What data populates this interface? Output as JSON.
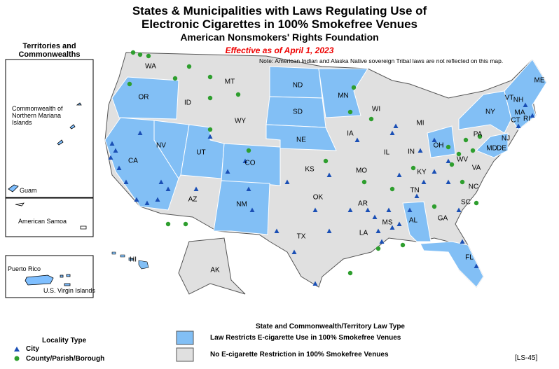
{
  "header": {
    "title_line1": "States & Municipalities with Laws Regulating Use of",
    "title_line2": "Electronic Cigarettes in 100% Smokefree Venues",
    "subtitle": "American Nonsmokers' Rights Foundation",
    "effective": "Effective as of April 1, 2023",
    "note": "Note: American Indian and Alaska Native sovereign Tribal laws are not reflected on this map."
  },
  "territories": {
    "title": "Territories and Commonwealths",
    "labels": [
      "Commonwealth of Northern Mariana Islands",
      "Guam",
      "American Samoa",
      "Puerto Rico",
      "U.S. Virgin Islands"
    ]
  },
  "states": [
    "WA",
    "OR",
    "MT",
    "ID",
    "ND",
    "MN",
    "SD",
    "WY",
    "WI",
    "MI",
    "NE",
    "IA",
    "IL",
    "IN",
    "OH",
    "PA",
    "NY",
    "VT",
    "NH",
    "ME",
    "MA",
    "CT",
    "RI",
    "NJ",
    "DE",
    "MD",
    "WV",
    "VA",
    "NV",
    "UT",
    "CO",
    "CA",
    "KS",
    "MO",
    "KY",
    "TN",
    "NC",
    "SC",
    "OK",
    "AR",
    "AZ",
    "NM",
    "TX",
    "LA",
    "MS",
    "AL",
    "GA",
    "FL",
    "AK",
    "HI"
  ],
  "legend": {
    "locality_title": "Locality Type",
    "locality_items": [
      "City",
      "County/Parish/Borough"
    ],
    "law_title": "State and Commonwealth/Territory Law Type",
    "law_items": [
      "Law Restricts E-cigarette Use in 100% Smokefree Venues",
      "No E-cigarette Restriction in 100% Smokefree Venues"
    ]
  },
  "code": "[LS-45]"
}
